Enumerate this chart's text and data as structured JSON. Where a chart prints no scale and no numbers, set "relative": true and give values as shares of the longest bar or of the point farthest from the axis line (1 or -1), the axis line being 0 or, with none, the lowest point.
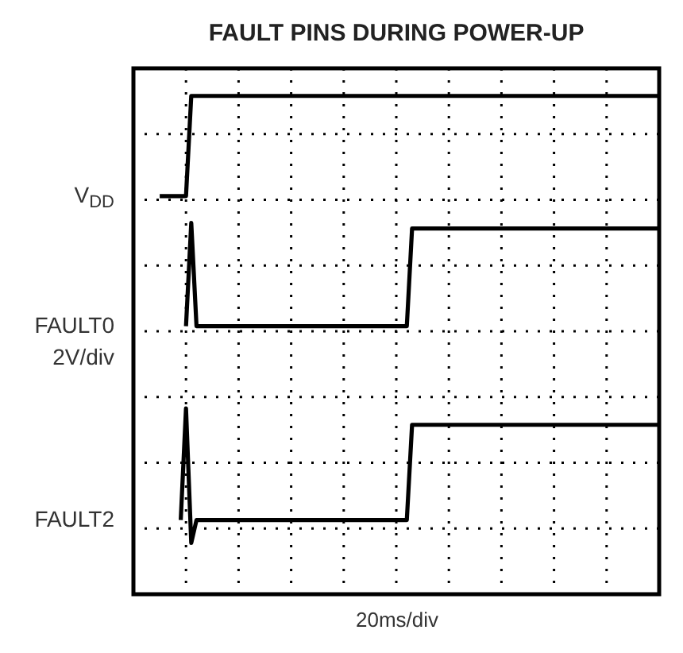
{
  "chart_data": {
    "type": "line",
    "title": "FAULT PINS DURING POWER-UP",
    "xlabel": "20ms/div",
    "relative": true,
    "grid": true,
    "line_style": "solid",
    "marker": "none",
    "annotations": [
      "2V/div"
    ],
    "categories": [
      null,
      null,
      null,
      null,
      null,
      null,
      null,
      null,
      null,
      null,
      null,
      null,
      null,
      null,
      null,
      null,
      null,
      null,
      null,
      null,
      null,
      null,
      null,
      null,
      null,
      null,
      null,
      null,
      null,
      null,
      null,
      null,
      null,
      null,
      null,
      null,
      null,
      null,
      null,
      null,
      null,
      null,
      null,
      null,
      null,
      null,
      null,
      null,
      null,
      null,
      null,
      null,
      null,
      null,
      null,
      null,
      null,
      null,
      null,
      null,
      null,
      null,
      null,
      null,
      null,
      null,
      null,
      null,
      null,
      null,
      null,
      null,
      null,
      null,
      null,
      null,
      null,
      null,
      null,
      null,
      null,
      null,
      null,
      null,
      null,
      null,
      null,
      null,
      null,
      null,
      null,
      null,
      null,
      null,
      null,
      null
    ],
    "series": [
      {
        "name": "V$_{DD}$",
        "color": "#000000",
        "values": [
          0.799,
          0.799,
          0.799,
          0.799,
          0.799,
          0.799,
          1,
          1,
          1,
          1,
          1,
          1,
          1,
          1,
          1,
          1,
          1,
          1,
          1,
          1,
          1,
          1,
          1,
          1,
          1,
          1,
          1,
          1,
          1,
          1,
          1,
          1,
          1,
          1,
          1,
          1,
          1,
          1,
          1,
          1,
          1,
          1,
          1,
          1,
          1,
          1,
          1,
          1,
          1,
          1,
          1,
          1,
          1,
          1,
          1,
          1,
          1,
          1,
          1,
          1,
          1,
          1,
          1,
          1,
          1,
          1,
          1,
          1,
          1,
          1,
          1,
          1,
          1,
          1,
          1,
          1,
          1,
          1,
          1,
          1,
          1,
          1,
          1,
          1,
          1,
          1,
          1,
          1,
          1,
          1,
          1,
          1,
          1,
          1,
          1,
          1
        ]
      },
      {
        "name": "FAULT0",
        "color": "#000000",
        "values": [
          null,
          null,
          null,
          null,
          null,
          0.538,
          0.745,
          0.538,
          0.538,
          0.538,
          0.538,
          0.538,
          0.538,
          0.538,
          0.538,
          0.538,
          0.538,
          0.538,
          0.538,
          0.538,
          0.538,
          0.538,
          0.538,
          0.538,
          0.538,
          0.538,
          0.538,
          0.538,
          0.538,
          0.538,
          0.538,
          0.538,
          0.538,
          0.538,
          0.538,
          0.538,
          0.538,
          0.538,
          0.538,
          0.538,
          0.538,
          0.538,
          0.538,
          0.538,
          0.538,
          0.538,
          0.538,
          0.538,
          0.734,
          0.734,
          0.734,
          0.734,
          0.734,
          0.734,
          0.734,
          0.734,
          0.734,
          0.734,
          0.734,
          0.734,
          0.734,
          0.734,
          0.734,
          0.734,
          0.734,
          0.734,
          0.734,
          0.734,
          0.734,
          0.734,
          0.734,
          0.734,
          0.734,
          0.734,
          0.734,
          0.734,
          0.734,
          0.734,
          0.734,
          0.734,
          0.734,
          0.734,
          0.734,
          0.734,
          0.734,
          0.734,
          0.734,
          0.734,
          0.734,
          0.734,
          0.734,
          0.734,
          0.734,
          0.734,
          0.734,
          0.734
        ]
      },
      {
        "name": "FAULT2",
        "color": "#000000",
        "values": [
          null,
          null,
          null,
          null,
          0.149,
          0.373,
          0.103,
          0.149,
          0.149,
          0.149,
          0.149,
          0.149,
          0.149,
          0.149,
          0.149,
          0.149,
          0.149,
          0.149,
          0.149,
          0.149,
          0.149,
          0.149,
          0.149,
          0.149,
          0.149,
          0.149,
          0.149,
          0.149,
          0.149,
          0.149,
          0.149,
          0.149,
          0.149,
          0.149,
          0.149,
          0.149,
          0.149,
          0.149,
          0.149,
          0.149,
          0.149,
          0.149,
          0.149,
          0.149,
          0.149,
          0.149,
          0.149,
          0.149,
          0.34,
          0.34,
          0.34,
          0.34,
          0.34,
          0.34,
          0.34,
          0.34,
          0.34,
          0.34,
          0.34,
          0.34,
          0.34,
          0.34,
          0.34,
          0.34,
          0.34,
          0.34,
          0.34,
          0.34,
          0.34,
          0.34,
          0.34,
          0.34,
          0.34,
          0.34,
          0.34,
          0.34,
          0.34,
          0.34,
          0.34,
          0.34,
          0.34,
          0.34,
          0.34,
          0.34,
          0.34,
          0.34,
          0.34,
          0.34,
          0.34,
          0.34,
          0.34,
          0.34,
          0.34,
          0.34,
          0.34,
          0.34
        ]
      }
    ]
  }
}
